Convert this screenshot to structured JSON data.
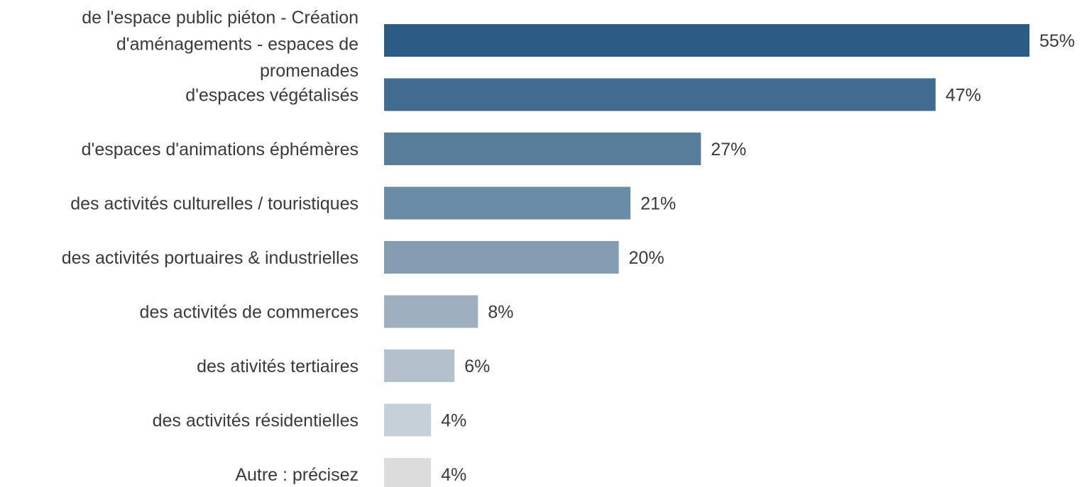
{
  "chart_data": {
    "type": "bar",
    "orientation": "horizontal",
    "categories": [
      [
        "de l'espace public piéton - Création",
        "d'aménagements - espaces de",
        "promenades"
      ],
      [
        "d'espaces végétalisés"
      ],
      [
        "d'espaces d'animations éphémères"
      ],
      [
        "des activités culturelles / touristiques"
      ],
      [
        "des activités portuaires & industrielles"
      ],
      [
        "des activités de commerces"
      ],
      [
        "des ativités tertiaires"
      ],
      [
        "des activités résidentielles"
      ],
      [
        "Autre : précisez"
      ]
    ],
    "values": [
      55,
      47,
      27,
      21,
      20,
      8,
      6,
      4,
      4
    ],
    "value_labels": [
      "55%",
      "47%",
      "27%",
      "21%",
      "20%",
      "8%",
      "6%",
      "4%",
      "4%"
    ],
    "unit": "%",
    "colors": [
      "#2c5c85",
      "#416c90",
      "#577d9b",
      "#6b8ca6",
      "#859db2",
      "#9eb0c0",
      "#b4c1cd",
      "#c6d0d9",
      "#dcdcdc"
    ],
    "xlim": [
      0,
      55
    ],
    "grid": false,
    "legend": "none"
  }
}
